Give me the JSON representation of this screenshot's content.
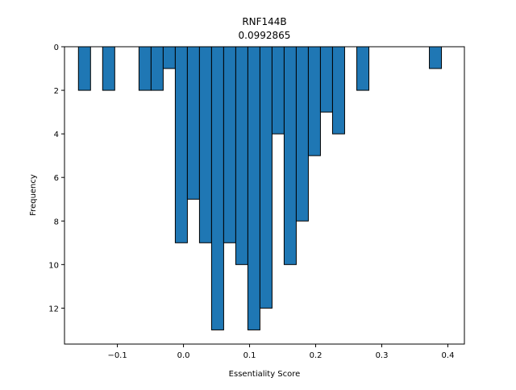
{
  "chart_data": {
    "type": "bar",
    "title": "RNF144B",
    "subtitle": "0.0992865",
    "xlabel": "Essentiality Score",
    "ylabel": "Frequency",
    "xlim": [
      -0.18,
      0.425
    ],
    "ylim": [
      0,
      13.65
    ],
    "y_inverted": true,
    "grid": false,
    "bin_width": 0.0183,
    "bar_color": "#1f77b4",
    "edge_color": "#000000",
    "x_ticks": [
      -0.1,
      0.0,
      0.1,
      0.2,
      0.3,
      0.4
    ],
    "x_tick_labels": [
      "−0.1",
      "0.0",
      "0.1",
      "0.2",
      "0.3",
      "0.4"
    ],
    "y_ticks": [
      0,
      2,
      4,
      6,
      8,
      10,
      12
    ],
    "y_tick_labels": [
      "0",
      "2",
      "4",
      "6",
      "8",
      "10",
      "12"
    ],
    "bins": [
      {
        "x": -0.1589,
        "count": 2
      },
      {
        "x": -0.1223,
        "count": 2
      },
      {
        "x": -0.0673,
        "count": 2
      },
      {
        "x": -0.049,
        "count": 2
      },
      {
        "x": -0.0307,
        "count": 1
      },
      {
        "x": -0.0124,
        "count": 9
      },
      {
        "x": 0.0059,
        "count": 7
      },
      {
        "x": 0.0242,
        "count": 9
      },
      {
        "x": 0.0425,
        "count": 13
      },
      {
        "x": 0.0608,
        "count": 9
      },
      {
        "x": 0.0791,
        "count": 10
      },
      {
        "x": 0.0974,
        "count": 13
      },
      {
        "x": 0.1157,
        "count": 12
      },
      {
        "x": 0.134,
        "count": 4
      },
      {
        "x": 0.1523,
        "count": 10
      },
      {
        "x": 0.1706,
        "count": 8
      },
      {
        "x": 0.1889,
        "count": 5
      },
      {
        "x": 0.2072,
        "count": 3
      },
      {
        "x": 0.2255,
        "count": 4
      },
      {
        "x": 0.2622,
        "count": 2
      },
      {
        "x": 0.372,
        "count": 1
      }
    ]
  }
}
